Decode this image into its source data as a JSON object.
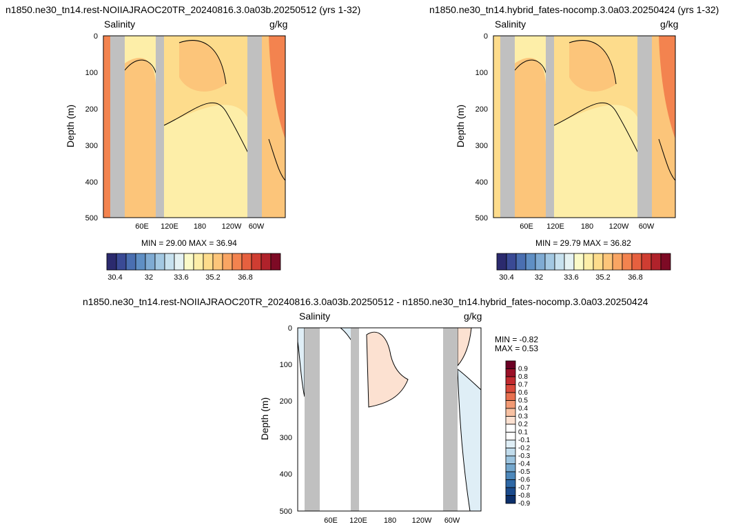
{
  "panels": [
    {
      "title": "n1850.ne30_tn14.rest-NOIIAJRAOC20TR_20240816.3.0a03b.20250512 (yrs 1-32)",
      "left_label": "Salinity",
      "right_label": "g/kg",
      "ylabel": "Depth (m)",
      "stats": "MIN = 29.00 MAX = 36.94"
    },
    {
      "title": "n1850.ne30_tn14.hybrid_fates-nocomp.3.0a03.20250424 (yrs 1-32)",
      "left_label": "Salinity",
      "right_label": "g/kg",
      "ylabel": "Depth (m)",
      "stats": "MIN = 29.79 MAX = 36.82"
    },
    {
      "title": "n1850.ne30_tn14.rest-NOIIAJRAOC20TR_20240816.3.0a03b.20250512 - n1850.ne30_tn14.hybrid_fates-nocomp.3.0a03.20250424",
      "left_label": "Salinity",
      "right_label": "g/kg",
      "ylabel": "Depth (m)",
      "stats_min": "MIN = -0.82",
      "stats_max": "MAX = 0.53"
    }
  ],
  "chart_data": [
    {
      "type": "heatmap",
      "panel": "top-left",
      "xlabel": "",
      "ylabel": "Depth (m)",
      "y_ticks": [
        "0",
        "100",
        "200",
        "300",
        "400",
        "500"
      ],
      "x_ticks": [
        "60E",
        "120E",
        "180",
        "120W",
        "60W"
      ],
      "ylim": [
        500,
        0
      ],
      "colorbar_labels": [
        "30.4",
        "32",
        "33.6",
        "35.2",
        "36.8"
      ],
      "min": 29.0,
      "max": 36.94
    },
    {
      "type": "heatmap",
      "panel": "top-right",
      "xlabel": "",
      "ylabel": "Depth (m)",
      "y_ticks": [
        "0",
        "100",
        "200",
        "300",
        "400",
        "500"
      ],
      "x_ticks": [
        "60E",
        "120E",
        "180",
        "120W",
        "60W"
      ],
      "ylim": [
        500,
        0
      ],
      "colorbar_labels": [
        "30.4",
        "32",
        "33.6",
        "35.2",
        "36.8"
      ],
      "min": 29.79,
      "max": 36.82
    },
    {
      "type": "heatmap",
      "panel": "bottom",
      "xlabel": "",
      "ylabel": "Depth (m)",
      "y_ticks": [
        "0",
        "100",
        "200",
        "300",
        "400",
        "500"
      ],
      "x_ticks": [
        "60E",
        "120E",
        "180",
        "120W",
        "60W"
      ],
      "ylim": [
        500,
        0
      ],
      "colorbar_labels": [
        "0.9",
        "0.8",
        "0.7",
        "0.6",
        "0.5",
        "0.4",
        "0.3",
        "0.2",
        "0.1",
        "-0.1",
        "-0.2",
        "-0.3",
        "-0.4",
        "-0.5",
        "-0.6",
        "-0.7",
        "-0.8",
        "-0.9"
      ],
      "min": -0.82,
      "max": 0.53
    }
  ],
  "colors": {
    "land": "#c0c0c0",
    "seq": [
      "#2b2a6e",
      "#3a4a95",
      "#4a6fb1",
      "#5f8fc4",
      "#7fabd3",
      "#a3c8e2",
      "#c7e1ee",
      "#e5f2f3",
      "#fbfac8",
      "#fdeea8",
      "#fddc8c",
      "#fcc57a",
      "#f9a563",
      "#f3834f",
      "#e6603f",
      "#cf3d32",
      "#b0222b",
      "#7d0a25"
    ],
    "div": [
      "#6b0024",
      "#9b1027",
      "#c22a2f",
      "#d9493b",
      "#e8704f",
      "#f29a74",
      "#f8c1a2",
      "#fce1d1",
      "#ffffff",
      "#ffffff",
      "#dfeef6",
      "#c1dcec",
      "#9cc4df",
      "#74a7cd",
      "#4d88bb",
      "#2e68a6",
      "#1a4a8c",
      "#0c2f6b"
    ]
  }
}
